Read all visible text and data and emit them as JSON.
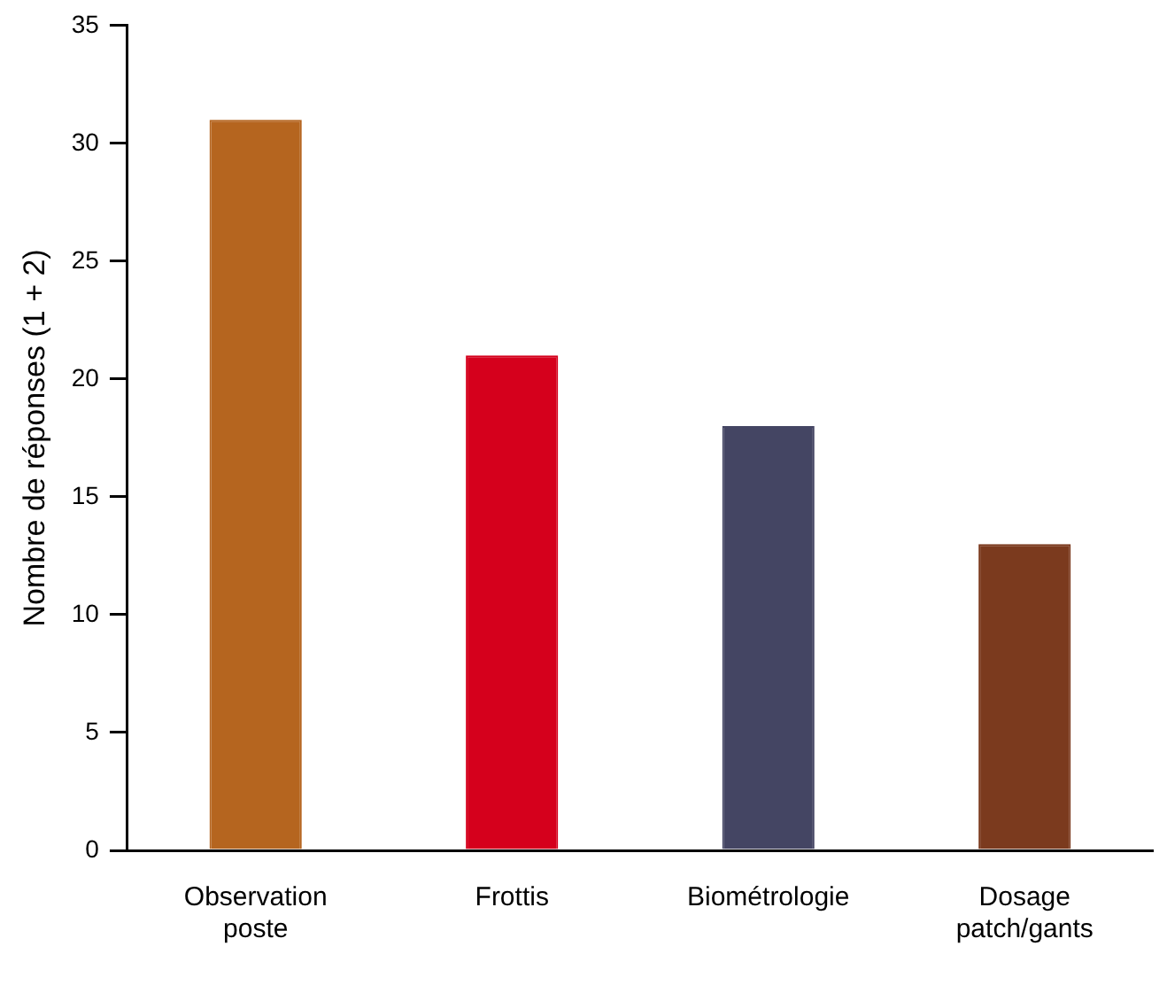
{
  "chart_data": {
    "type": "bar",
    "ylabel": "Nombre de réponses (1 + 2)",
    "categories": [
      "Observation poste",
      "Frottis",
      "Biométrologie",
      "Dosage patch/gants"
    ],
    "values": [
      31,
      21,
      18,
      13
    ],
    "colors": [
      "#b5651f",
      "#d5001c",
      "#444563",
      "#7b3a1e"
    ],
    "ylim": [
      0,
      35
    ],
    "yticks": [
      0,
      5,
      10,
      15,
      20,
      25,
      30,
      35
    ],
    "grid": false,
    "legend": false
  }
}
